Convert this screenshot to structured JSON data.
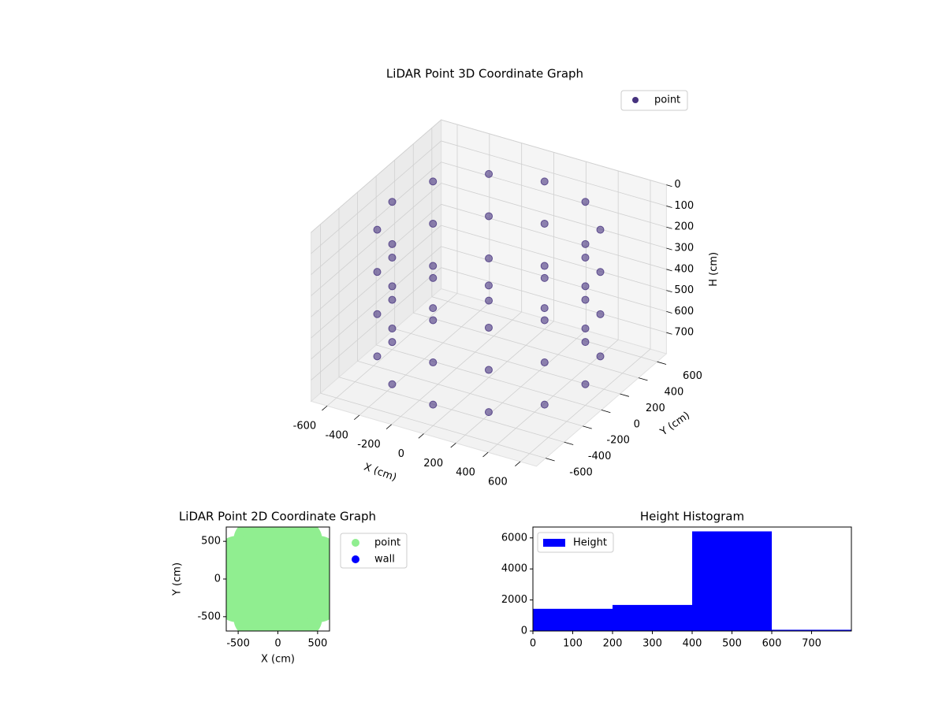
{
  "chart_data": [
    {
      "type": "scatter3d",
      "title": "LiDAR Point 3D Coordinate Graph",
      "x_label": "X (cm)",
      "y_label": "Y (cm)",
      "z_label": "H (cm)",
      "xlim": [
        -700,
        700
      ],
      "ylim": [
        -700,
        700
      ],
      "zlim": [
        800,
        0
      ],
      "xticks": [
        -600,
        -400,
        -200,
        0,
        200,
        400,
        600
      ],
      "yticks": [
        -600,
        -400,
        -200,
        0,
        200,
        400,
        600
      ],
      "zticks": [
        0,
        100,
        200,
        300,
        400,
        500,
        600,
        700
      ],
      "grid": true,
      "legend": "upper right",
      "series": [
        {
          "name": "point",
          "color": "#46327e",
          "x": [
            600,
            520,
            300,
            0,
            -300,
            -520,
            -600,
            -520,
            -300,
            0,
            300,
            520,
            600,
            520,
            300,
            0,
            -300,
            -520,
            -600,
            -520,
            -300,
            0,
            300,
            520,
            600,
            520,
            300,
            0,
            -300,
            -520,
            -600,
            -520,
            -300,
            0,
            300,
            520,
            600,
            520,
            300,
            0,
            -300,
            -520,
            -600,
            -520,
            -300,
            0,
            300,
            520
          ],
          "y": [
            0,
            300,
            520,
            600,
            520,
            300,
            0,
            -300,
            -520,
            -600,
            -520,
            -300,
            0,
            300,
            520,
            600,
            520,
            300,
            0,
            -300,
            -520,
            -600,
            -520,
            -300,
            0,
            300,
            520,
            600,
            520,
            300,
            0,
            -300,
            -520,
            -600,
            -520,
            -300,
            0,
            300,
            520,
            600,
            520,
            300,
            0,
            -300,
            -520,
            -600,
            -520,
            -300
          ],
          "z": [
            100,
            100,
            100,
            100,
            100,
            100,
            100,
            100,
            100,
            100,
            100,
            100,
            300,
            300,
            300,
            300,
            300,
            300,
            300,
            300,
            300,
            300,
            300,
            300,
            500,
            500,
            500,
            500,
            500,
            500,
            500,
            500,
            500,
            500,
            500,
            500,
            700,
            700,
            700,
            700,
            700,
            700,
            700,
            700,
            700,
            700,
            700,
            700
          ]
        }
      ]
    },
    {
      "type": "scatter",
      "title": "LiDAR Point 2D Coordinate Graph",
      "x_label": "X (cm)",
      "y_label": "Y (cm)",
      "xlim": [
        -650,
        650
      ],
      "ylim": [
        -690,
        690
      ],
      "xticks": [
        -500,
        0,
        500
      ],
      "yticks": [
        -500,
        0,
        500
      ],
      "legend": "outside right",
      "series": [
        {
          "name": "point",
          "color": "#90ee90",
          "x": [
            600,
            520,
            300,
            0,
            -300,
            -520,
            -600,
            -520,
            -300,
            0,
            300,
            520,
            300,
            150,
            -150,
            -300,
            -150,
            150,
            0
          ],
          "y": [
            0,
            300,
            520,
            600,
            520,
            300,
            0,
            -300,
            -520,
            -600,
            -520,
            -300,
            0,
            260,
            260,
            0,
            -260,
            -260,
            0
          ]
        },
        {
          "name": "wall",
          "color": "#0000ff",
          "x": [],
          "y": []
        }
      ]
    },
    {
      "type": "histogram",
      "title": "Height Histogram",
      "name": "Height",
      "color": "#0000ff",
      "bins": [
        0,
        200,
        400,
        600,
        800
      ],
      "values": [
        1430,
        1680,
        6420,
        80
      ],
      "xlim": [
        0,
        800
      ],
      "ylim": [
        0,
        6700
      ],
      "xticks": [
        0,
        100,
        200,
        300,
        400,
        500,
        600,
        700
      ],
      "yticks": [
        0,
        2000,
        4000,
        6000
      ],
      "legend": "upper left"
    }
  ]
}
